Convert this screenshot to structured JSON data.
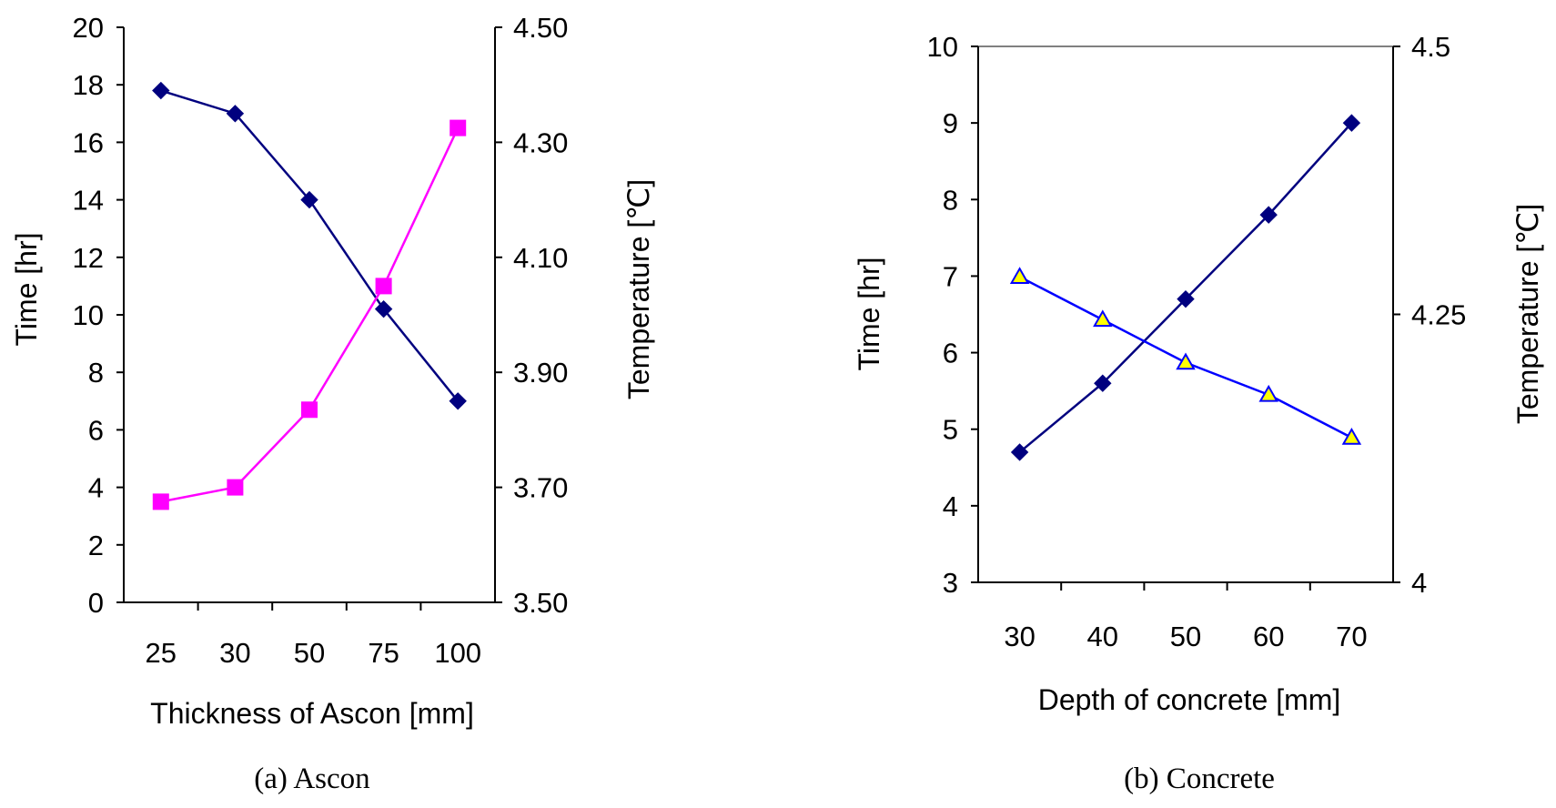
{
  "chart_data": [
    {
      "type": "line",
      "caption": "(a) Ascon",
      "categories": [
        "25",
        "30",
        "50",
        "75",
        "100"
      ],
      "xlabel": "Thickness of Ascon [mm]",
      "ylabel": "Time [hr]",
      "y2label": "Temperature [℃]",
      "ylim": [
        0,
        20
      ],
      "yticks": [
        "0",
        "2",
        "4",
        "6",
        "8",
        "10",
        "12",
        "14",
        "16",
        "18",
        "20"
      ],
      "y2lim": [
        3.5,
        4.5
      ],
      "y2ticks": [
        "3.50",
        "3.70",
        "3.90",
        "4.10",
        "4.30",
        "4.50"
      ],
      "series": [
        {
          "axis": "left",
          "values": [
            17.8,
            17.0,
            14.0,
            10.2,
            7.0
          ],
          "color": "#00007f",
          "marker": "diamond"
        },
        {
          "axis": "right",
          "values": [
            3.675,
            3.7,
            3.835,
            4.05,
            4.325
          ],
          "color": "#ff00ff",
          "marker": "square"
        }
      ]
    },
    {
      "type": "line",
      "caption": "(b) Concrete",
      "categories": [
        "30",
        "40",
        "50",
        "60",
        "70"
      ],
      "xlabel": "Depth of concrete [mm]",
      "ylabel": "Time [hr]",
      "y2label": "Temperature [℃]",
      "ylim": [
        3,
        10
      ],
      "yticks": [
        "3",
        "4",
        "5",
        "6",
        "7",
        "8",
        "9",
        "10"
      ],
      "y2lim": [
        4,
        4.5
      ],
      "y2ticks": [
        "4",
        "4.25",
        "4.5"
      ],
      "series": [
        {
          "axis": "left",
          "values": [
            4.7,
            5.6,
            6.7,
            7.8,
            9.0
          ],
          "color": "#00007f",
          "marker": "diamond"
        },
        {
          "axis": "right",
          "values": [
            4.285,
            4.245,
            4.205,
            4.175,
            4.135
          ],
          "color": "#0000ff",
          "marker": "triangle"
        }
      ]
    }
  ]
}
